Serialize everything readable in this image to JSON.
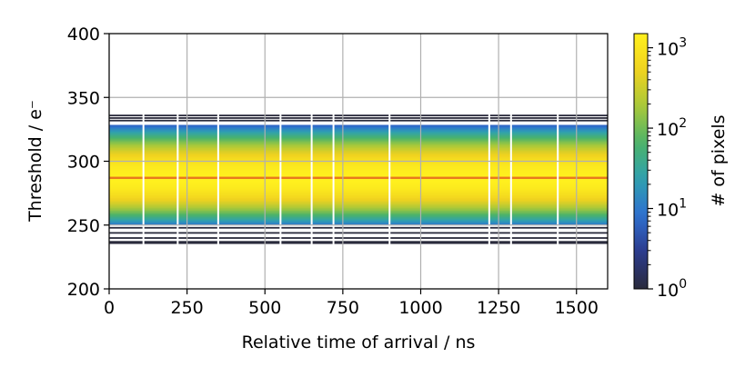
{
  "chart_data": {
    "type": "heatmap",
    "title": "",
    "xlabel": "Relative time of arrival / ns",
    "ylabel": "Threshold / e⁻",
    "xlim": [
      0,
      1600
    ],
    "ylim": [
      200,
      400
    ],
    "xticks": [
      "0",
      "250",
      "500",
      "750",
      "1000",
      "1250",
      "1500"
    ],
    "yticks": [
      "200",
      "250",
      "300",
      "350",
      "400"
    ],
    "xtick_values": [
      0,
      250,
      500,
      750,
      1000,
      1250,
      1500
    ],
    "ytick_values": [
      200,
      250,
      300,
      350,
      400
    ],
    "grid": true,
    "colormap": "cividis-like (dark navy → blue → green → yellow)",
    "colorbar": {
      "label": "# of pixels",
      "scale": "log",
      "range": [
        1,
        1500
      ],
      "ticks": [
        {
          "value": 1,
          "base": "10",
          "exp": "0"
        },
        {
          "value": 10,
          "base": "10",
          "exp": "1"
        },
        {
          "value": 100,
          "base": "10",
          "exp": "2"
        },
        {
          "value": 1000,
          "base": "10",
          "exp": "3"
        }
      ]
    },
    "distribution": {
      "peak_threshold": 287,
      "peak_count": 1500,
      "sigma_below": 11.5,
      "sigma_above": 12.5,
      "core_lower_edge": 251,
      "core_upper_edge": 328,
      "sparse_lower_edge": 235,
      "sparse_upper_edge": 336
    },
    "gap_columns_ns": [
      110,
      220,
      350,
      550,
      650,
      720,
      900,
      1220,
      1290,
      1440
    ],
    "colors": {
      "cmap_stops": [
        "#2a2b3c",
        "#2c3a8c",
        "#2f6fd0",
        "#2fa0b0",
        "#4bb36a",
        "#a8c83a",
        "#f0d21f",
        "#fff01e"
      ],
      "peak_line": "#e8781e",
      "grid": "#b0b0b0"
    }
  }
}
